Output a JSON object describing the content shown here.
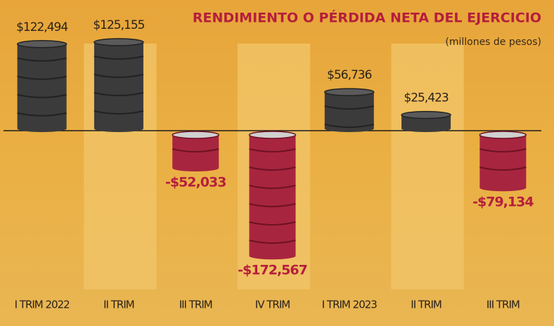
{
  "chart_data": {
    "type": "barrel",
    "title": "RENDIMIENTO O PÉRDIDA NETA DEL EJERCICIO",
    "subtitle": "(millones de pesos)",
    "categories": [
      "I TRIM 2022",
      "II TRIM",
      "III TRIM",
      "IV TRIM",
      "I TRIM 2023",
      "II TRIM",
      "III TRIM"
    ],
    "values": [
      122494,
      125155,
      -52033,
      -172567,
      56736,
      25423,
      -79134
    ],
    "value_labels": [
      "$122,494",
      "$125,155",
      "-$52,033",
      "-$172,567",
      "$56,736",
      "$25,423",
      "-$79,134"
    ],
    "positive_color": "#3b3b3b",
    "negative_color": "#a8253f"
  }
}
